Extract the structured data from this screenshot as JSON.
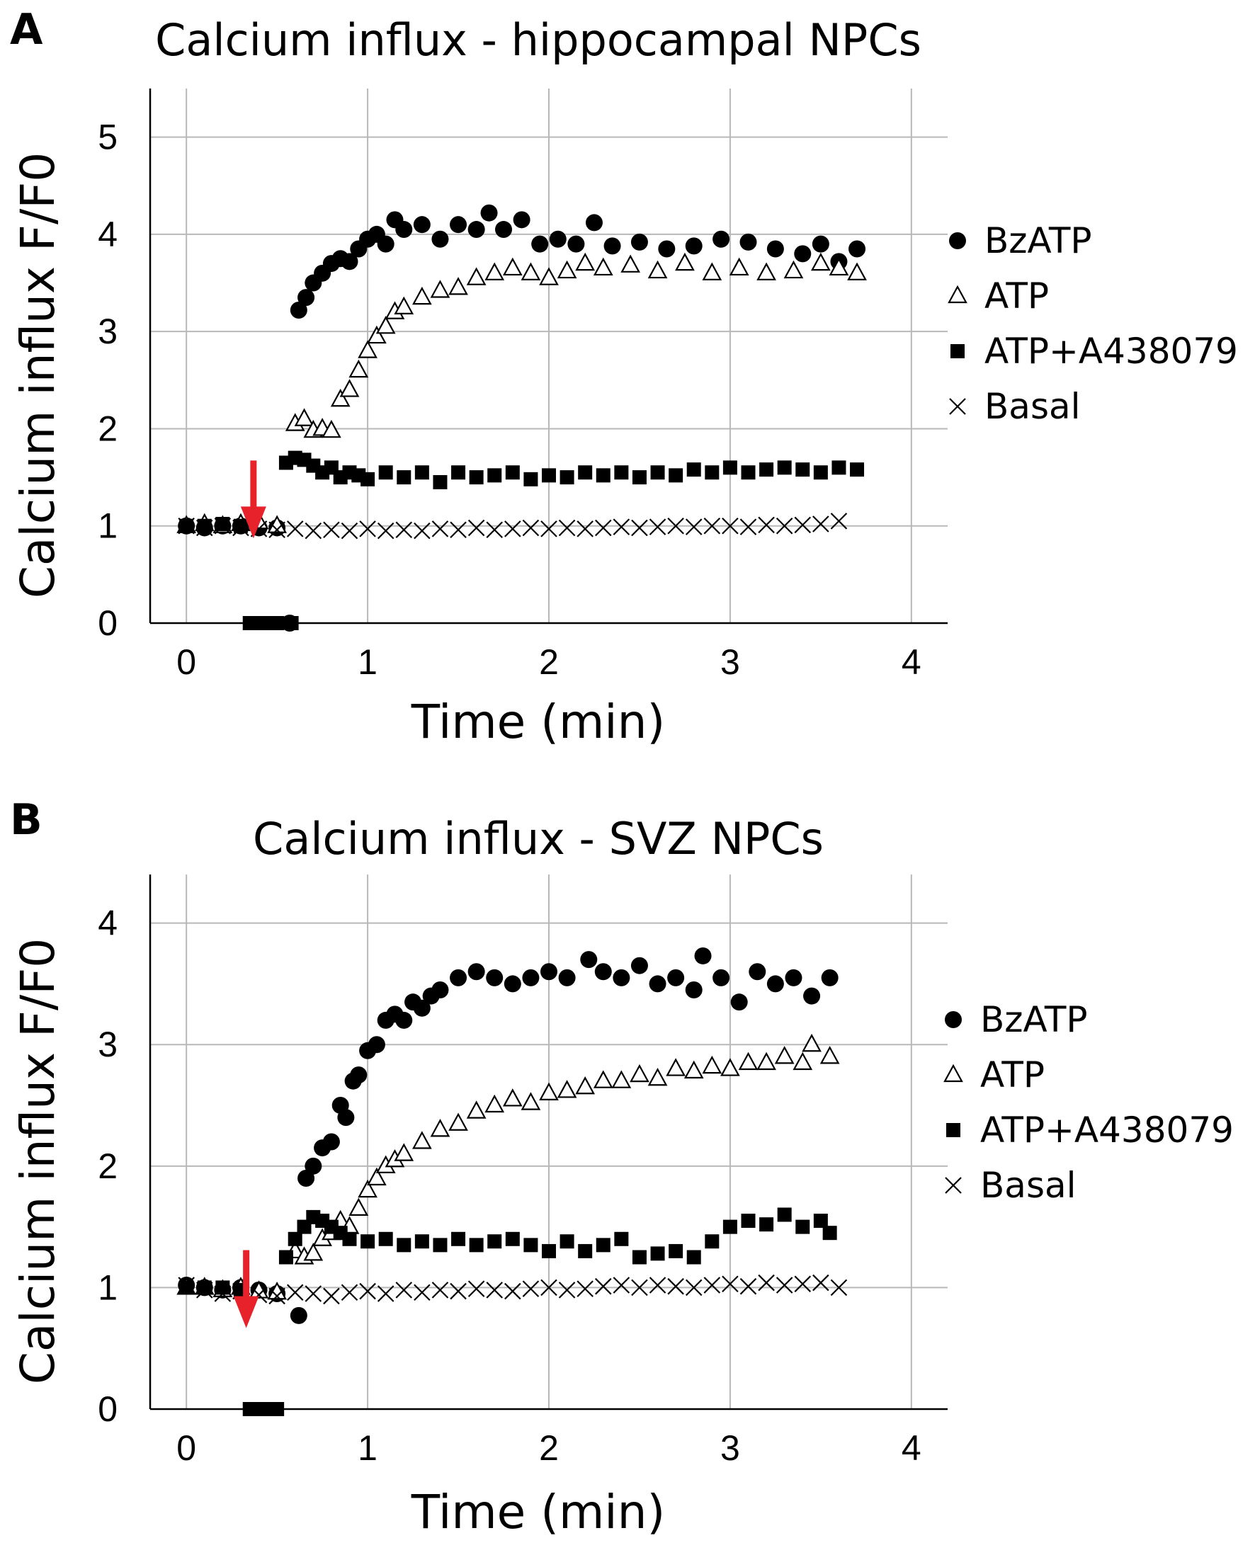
{
  "chart_data": [
    {
      "panel": "A",
      "type": "scatter",
      "title": "Calcium influx - hippocampal NPCs",
      "xlabel": "Time (min)",
      "ylabel": "Calcium influx F/F0",
      "xlim": [
        -0.2,
        4.2
      ],
      "ylim": [
        0,
        5.5
      ],
      "xticks": [
        0,
        1,
        2,
        3,
        4
      ],
      "yticks": [
        0,
        1,
        2,
        3,
        4,
        5
      ],
      "grid": true,
      "legend_position": "right",
      "annotation": "red arrow at treatment addition",
      "annotation_point": [
        0.37,
        1.6
      ],
      "series": [
        {
          "name": "BzATP",
          "marker": "filled-circle",
          "x": [
            0.0,
            0.1,
            0.2,
            0.3,
            0.4,
            0.5,
            0.57,
            0.62,
            0.66,
            0.7,
            0.75,
            0.8,
            0.85,
            0.9,
            0.95,
            1.0,
            1.05,
            1.1,
            1.15,
            1.2,
            1.3,
            1.4,
            1.5,
            1.6,
            1.67,
            1.75,
            1.85,
            1.95,
            2.05,
            2.15,
            2.25,
            2.35,
            2.5,
            2.65,
            2.8,
            2.95,
            3.1,
            3.25,
            3.4,
            3.5,
            3.6,
            3.7
          ],
          "y": [
            1.0,
            0.98,
            1.0,
            1.0,
            0.98,
            0.98,
            0.0,
            3.22,
            3.35,
            3.5,
            3.6,
            3.7,
            3.75,
            3.72,
            3.85,
            3.95,
            4.0,
            3.9,
            4.15,
            4.05,
            4.1,
            3.95,
            4.1,
            4.05,
            4.22,
            4.05,
            4.15,
            3.9,
            3.95,
            3.9,
            4.12,
            3.88,
            3.92,
            3.85,
            3.88,
            3.95,
            3.92,
            3.85,
            3.8,
            3.9,
            3.72,
            3.85
          ]
        },
        {
          "name": "ATP",
          "marker": "open-triangle",
          "x": [
            0.0,
            0.1,
            0.2,
            0.3,
            0.4,
            0.5,
            0.6,
            0.65,
            0.7,
            0.75,
            0.8,
            0.85,
            0.9,
            0.95,
            1.0,
            1.05,
            1.1,
            1.15,
            1.2,
            1.3,
            1.4,
            1.5,
            1.6,
            1.7,
            1.8,
            1.9,
            2.0,
            2.1,
            2.2,
            2.3,
            2.45,
            2.6,
            2.75,
            2.9,
            3.05,
            3.2,
            3.35,
            3.5,
            3.6,
            3.7
          ],
          "y": [
            1.0,
            1.02,
            1.0,
            1.02,
            1.04,
            1.0,
            2.05,
            2.1,
            1.98,
            2.0,
            1.98,
            2.3,
            2.4,
            2.6,
            2.8,
            2.95,
            3.05,
            3.2,
            3.25,
            3.35,
            3.42,
            3.45,
            3.55,
            3.6,
            3.65,
            3.6,
            3.55,
            3.62,
            3.7,
            3.65,
            3.68,
            3.62,
            3.7,
            3.6,
            3.65,
            3.6,
            3.62,
            3.7,
            3.65,
            3.6
          ]
        },
        {
          "name": "ATP+A438079",
          "marker": "filled-square",
          "x": [
            0.0,
            0.1,
            0.2,
            0.3,
            0.35,
            0.4,
            0.45,
            0.5,
            0.55,
            0.58,
            0.6,
            0.65,
            0.7,
            0.75,
            0.8,
            0.85,
            0.9,
            0.95,
            1.0,
            1.1,
            1.2,
            1.3,
            1.4,
            1.5,
            1.6,
            1.7,
            1.8,
            1.9,
            2.0,
            2.1,
            2.2,
            2.3,
            2.4,
            2.5,
            2.6,
            2.7,
            2.8,
            2.9,
            3.0,
            3.1,
            3.2,
            3.3,
            3.4,
            3.5,
            3.6,
            3.7
          ],
          "y": [
            1.0,
            1.0,
            1.02,
            1.0,
            0.0,
            0.0,
            0.0,
            0.0,
            1.65,
            0.0,
            1.7,
            1.68,
            1.62,
            1.55,
            1.6,
            1.5,
            1.55,
            1.52,
            1.48,
            1.55,
            1.5,
            1.55,
            1.45,
            1.55,
            1.5,
            1.52,
            1.55,
            1.48,
            1.52,
            1.5,
            1.55,
            1.52,
            1.55,
            1.5,
            1.55,
            1.52,
            1.58,
            1.55,
            1.6,
            1.55,
            1.58,
            1.6,
            1.58,
            1.55,
            1.6,
            1.58
          ]
        },
        {
          "name": "Basal",
          "marker": "x",
          "x": [
            0.0,
            0.1,
            0.2,
            0.3,
            0.4,
            0.5,
            0.6,
            0.7,
            0.8,
            0.9,
            1.0,
            1.1,
            1.2,
            1.3,
            1.4,
            1.5,
            1.6,
            1.7,
            1.8,
            1.9,
            2.0,
            2.1,
            2.2,
            2.3,
            2.4,
            2.5,
            2.6,
            2.7,
            2.8,
            2.9,
            3.0,
            3.1,
            3.2,
            3.3,
            3.4,
            3.5,
            3.6
          ],
          "y": [
            1.0,
            0.98,
            1.0,
            0.98,
            0.97,
            0.96,
            0.97,
            0.95,
            0.96,
            0.95,
            0.97,
            0.95,
            0.96,
            0.95,
            0.97,
            0.96,
            0.98,
            0.96,
            0.97,
            0.98,
            0.97,
            0.98,
            0.97,
            0.98,
            0.99,
            0.98,
            0.99,
            1.0,
            0.99,
            1.0,
            1.0,
            0.99,
            1.01,
            1.0,
            1.01,
            1.02,
            1.05
          ]
        }
      ]
    },
    {
      "panel": "B",
      "type": "scatter",
      "title": "Calcium influx - SVZ NPCs",
      "xlabel": "Time (min)",
      "ylabel": "Calcium influx F/F0",
      "xlim": [
        -0.2,
        4.2
      ],
      "ylim": [
        0,
        4.4
      ],
      "xticks": [
        0,
        1,
        2,
        3,
        4
      ],
      "yticks": [
        0,
        1,
        2,
        3,
        4
      ],
      "grid": true,
      "legend_position": "right",
      "annotation": "red arrow at treatment addition",
      "annotation_point": [
        0.33,
        1.25
      ],
      "series": [
        {
          "name": "BzATP",
          "marker": "filled-circle",
          "x": [
            0.0,
            0.1,
            0.2,
            0.3,
            0.4,
            0.5,
            0.62,
            0.66,
            0.7,
            0.75,
            0.8,
            0.85,
            0.88,
            0.92,
            0.95,
            1.0,
            1.05,
            1.1,
            1.15,
            1.2,
            1.25,
            1.3,
            1.35,
            1.4,
            1.5,
            1.6,
            1.7,
            1.8,
            1.9,
            2.0,
            2.1,
            2.22,
            2.3,
            2.4,
            2.5,
            2.6,
            2.7,
            2.8,
            2.85,
            2.95,
            3.05,
            3.15,
            3.25,
            3.35,
            3.45,
            3.55
          ],
          "y": [
            1.02,
            1.0,
            0.98,
            1.0,
            0.98,
            0.95,
            0.77,
            1.9,
            2.0,
            2.15,
            2.2,
            2.5,
            2.4,
            2.7,
            2.75,
            2.95,
            3.0,
            3.2,
            3.25,
            3.2,
            3.35,
            3.3,
            3.4,
            3.45,
            3.55,
            3.6,
            3.55,
            3.5,
            3.55,
            3.6,
            3.55,
            3.7,
            3.6,
            3.55,
            3.65,
            3.5,
            3.55,
            3.45,
            3.73,
            3.55,
            3.35,
            3.6,
            3.5,
            3.55,
            3.4,
            3.55
          ]
        },
        {
          "name": "ATP",
          "marker": "open-triangle",
          "x": [
            0.0,
            0.1,
            0.2,
            0.3,
            0.4,
            0.5,
            0.6,
            0.65,
            0.7,
            0.75,
            0.8,
            0.85,
            0.9,
            0.95,
            1.0,
            1.05,
            1.1,
            1.15,
            1.2,
            1.3,
            1.4,
            1.5,
            1.6,
            1.7,
            1.8,
            1.9,
            2.0,
            2.1,
            2.2,
            2.3,
            2.4,
            2.5,
            2.6,
            2.7,
            2.8,
            2.9,
            3.0,
            3.1,
            3.2,
            3.3,
            3.4,
            3.45,
            3.55
          ],
          "y": [
            1.0,
            1.0,
            0.98,
            1.0,
            0.97,
            0.96,
            1.3,
            1.25,
            1.28,
            1.4,
            1.45,
            1.55,
            1.5,
            1.65,
            1.8,
            1.9,
            2.0,
            2.05,
            2.1,
            2.2,
            2.3,
            2.35,
            2.45,
            2.5,
            2.55,
            2.52,
            2.6,
            2.62,
            2.65,
            2.7,
            2.7,
            2.75,
            2.72,
            2.8,
            2.78,
            2.82,
            2.8,
            2.85,
            2.85,
            2.9,
            2.85,
            3.0,
            2.9
          ]
        },
        {
          "name": "ATP+A438079",
          "marker": "filled-square",
          "x": [
            0.0,
            0.1,
            0.2,
            0.3,
            0.35,
            0.4,
            0.45,
            0.5,
            0.55,
            0.6,
            0.65,
            0.7,
            0.75,
            0.8,
            0.85,
            0.9,
            1.0,
            1.1,
            1.2,
            1.3,
            1.4,
            1.5,
            1.6,
            1.7,
            1.8,
            1.9,
            2.0,
            2.1,
            2.2,
            2.3,
            2.4,
            2.5,
            2.6,
            2.7,
            2.8,
            2.9,
            3.0,
            3.1,
            3.2,
            3.3,
            3.4,
            3.5,
            3.55
          ],
          "y": [
            1.0,
            1.0,
            1.0,
            0.98,
            0.0,
            0.0,
            0.0,
            0.0,
            1.25,
            1.4,
            1.5,
            1.58,
            1.55,
            1.5,
            1.45,
            1.4,
            1.38,
            1.4,
            1.35,
            1.38,
            1.35,
            1.4,
            1.35,
            1.38,
            1.4,
            1.35,
            1.3,
            1.38,
            1.3,
            1.35,
            1.4,
            1.25,
            1.28,
            1.3,
            1.25,
            1.38,
            1.5,
            1.55,
            1.52,
            1.6,
            1.5,
            1.55,
            1.45
          ]
        },
        {
          "name": "Basal",
          "marker": "x",
          "x": [
            0.0,
            0.1,
            0.2,
            0.3,
            0.4,
            0.5,
            0.6,
            0.7,
            0.8,
            0.9,
            1.0,
            1.1,
            1.2,
            1.3,
            1.4,
            1.5,
            1.6,
            1.7,
            1.8,
            1.9,
            2.0,
            2.1,
            2.2,
            2.3,
            2.4,
            2.5,
            2.6,
            2.7,
            2.8,
            2.9,
            3.0,
            3.1,
            3.2,
            3.3,
            3.4,
            3.5,
            3.6
          ],
          "y": [
            1.02,
            0.98,
            0.95,
            0.97,
            0.94,
            0.93,
            0.96,
            0.95,
            0.93,
            0.96,
            0.97,
            0.95,
            0.98,
            0.96,
            0.98,
            0.97,
            0.99,
            0.98,
            0.97,
            0.99,
            1.0,
            0.98,
            0.99,
            1.01,
            1.02,
            1.0,
            1.02,
            1.01,
            1.0,
            1.02,
            1.03,
            1.01,
            1.04,
            1.02,
            1.03,
            1.04,
            1.0
          ]
        }
      ]
    }
  ],
  "colors": {
    "arrow": "#e8222a",
    "marker": "#000000",
    "grid": "#b8b8b8",
    "axis": "#000000"
  }
}
